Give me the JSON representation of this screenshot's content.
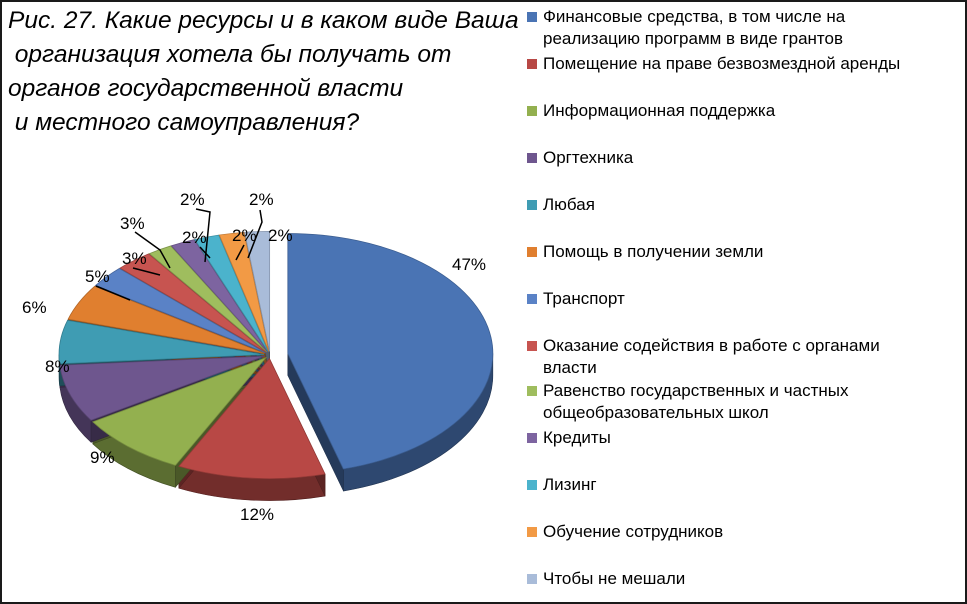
{
  "chart_data": {
    "type": "pie",
    "title": "Рис. 27. Какие ресурсы и в каком виде Ваша\n организация хотела бы получать от\nорганов государственной власти\n и местного самоуправления?",
    "slices": [
      {
        "label": "Финансовые средства, в том числе на\nреализацию программ в виде грантов",
        "value": 47,
        "data_label": "47%",
        "color": "#4a74b4"
      },
      {
        "label": "Помещение на праве безвозмездной аренды",
        "value": 12,
        "data_label": "12%",
        "color": "#b84845"
      },
      {
        "label": "Информационная поддержка",
        "value": 9,
        "data_label": "9%",
        "color": "#93b04f"
      },
      {
        "label": "Оргтехника",
        "value": 8,
        "data_label": "8%",
        "color": "#6e568e"
      },
      {
        "label": "Любая",
        "value": 6,
        "data_label": "6%",
        "color": "#3f9cb3"
      },
      {
        "label": "Помощь в получении земли",
        "value": 5,
        "data_label": "5%",
        "color": "#e07f2f"
      },
      {
        "label": "Транспорт",
        "value": 3,
        "data_label": "3%",
        "color": "#5a82c6"
      },
      {
        "label": "Оказание содействия в работе с органами\nвласти",
        "value": 3,
        "data_label": "3%",
        "color": "#c75450"
      },
      {
        "label": "Равенство государственных и частных\nобщеобразовательных школ",
        "value": 2,
        "data_label": "2%",
        "color": "#9fbd5e"
      },
      {
        "label": "Кредиты",
        "value": 2,
        "data_label": "2%",
        "color": "#7d64a0"
      },
      {
        "label": "Лизинг",
        "value": 2,
        "data_label": "2%",
        "color": "#4bb3cc"
      },
      {
        "label": "Обучение сотрудников",
        "value": 2,
        "data_label": "2%",
        "color": "#f29a45"
      },
      {
        "label": "Чтобы не мешали",
        "value": 2,
        "data_label": "2%",
        "color": "#a9bcd9"
      }
    ],
    "legend_position": "right",
    "style": "3d-exploded"
  }
}
